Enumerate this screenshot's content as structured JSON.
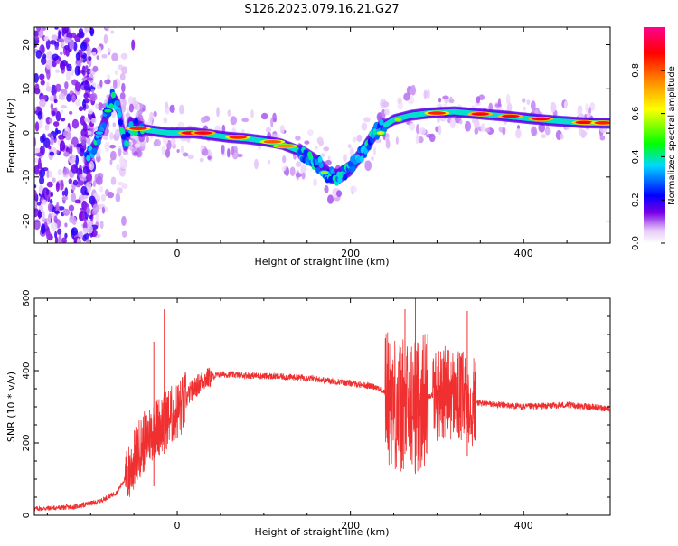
{
  "title": "S126.2023.079.16.21.G27",
  "chart_data": [
    {
      "type": "heatmap",
      "xlabel": "Height of straight line (km)",
      "ylabel": "Frequency (Hz)",
      "xlim": [
        -165,
        500
      ],
      "ylim": [
        -25,
        24
      ],
      "xticks": [
        0,
        200,
        400
      ],
      "yticks": [
        -20,
        -10,
        0,
        10,
        20
      ],
      "colorbar": {
        "label": "Normalized spectral amplitude",
        "range": [
          0,
          1
        ],
        "ticks": [
          "0.0",
          "0.2",
          "0.4",
          "0.6",
          "0.8"
        ],
        "colormap": [
          "#ffffff",
          "#e6c8f8",
          "#7a00e6",
          "#0000ff",
          "#00d8ff",
          "#00ff00",
          "#ffff00",
          "#ff8000",
          "#ff0000",
          "#ff0090"
        ]
      },
      "ridge": {
        "name": "dominant frequency track",
        "points": [
          [
            -105,
            -6
          ],
          [
            -95,
            -3
          ],
          [
            -85,
            2
          ],
          [
            -75,
            8
          ],
          [
            -68,
            6
          ],
          [
            -60,
            -3
          ],
          [
            -55,
            2
          ],
          [
            -45,
            1
          ],
          [
            -30,
            0.5
          ],
          [
            -10,
            0
          ],
          [
            20,
            0
          ],
          [
            40,
            -0.5
          ],
          [
            60,
            -1
          ],
          [
            80,
            -1.3
          ],
          [
            100,
            -1.8
          ],
          [
            120,
            -2.5
          ],
          [
            140,
            -4
          ],
          [
            160,
            -6.5
          ],
          [
            175,
            -9.5
          ],
          [
            185,
            -10
          ],
          [
            200,
            -8
          ],
          [
            215,
            -4
          ],
          [
            230,
            0.5
          ],
          [
            250,
            3
          ],
          [
            270,
            4
          ],
          [
            290,
            4.5
          ],
          [
            320,
            4.8
          ],
          [
            350,
            4.3
          ],
          [
            380,
            3.8
          ],
          [
            410,
            3.2
          ],
          [
            440,
            2.7
          ],
          [
            470,
            2.3
          ],
          [
            500,
            2.2
          ]
        ]
      }
    },
    {
      "type": "line",
      "xlabel": "Height of straight line (km)",
      "ylabel": "SNR (10 * v/v)",
      "xlim": [
        -165,
        500
      ],
      "ylim": [
        0,
        600
      ],
      "xticks": [
        0,
        200,
        400
      ],
      "yticks": [
        0,
        200,
        400,
        600
      ],
      "color": "#f03030",
      "envelope": [
        [
          -165,
          15
        ],
        [
          -120,
          20
        ],
        [
          -90,
          35
        ],
        [
          -70,
          60
        ],
        [
          -55,
          120
        ],
        [
          -45,
          180
        ],
        [
          -30,
          230
        ],
        [
          -20,
          250
        ],
        [
          -5,
          280
        ],
        [
          5,
          300
        ],
        [
          15,
          340
        ],
        [
          30,
          375
        ],
        [
          50,
          390
        ],
        [
          100,
          385
        ],
        [
          150,
          380
        ],
        [
          200,
          365
        ],
        [
          230,
          355
        ],
        [
          240,
          340
        ],
        [
          255,
          300
        ],
        [
          275,
          300
        ],
        [
          290,
          330
        ],
        [
          310,
          340
        ],
        [
          335,
          320
        ],
        [
          350,
          310
        ],
        [
          400,
          300
        ],
        [
          450,
          305
        ],
        [
          500,
          295
        ]
      ],
      "spikes": [
        {
          "x": -15,
          "y": 570
        },
        {
          "x": -27,
          "y": 480
        },
        {
          "x": 275,
          "y": 600
        },
        {
          "x": 263,
          "y": 570
        },
        {
          "x": 335,
          "y": 565
        }
      ]
    }
  ]
}
